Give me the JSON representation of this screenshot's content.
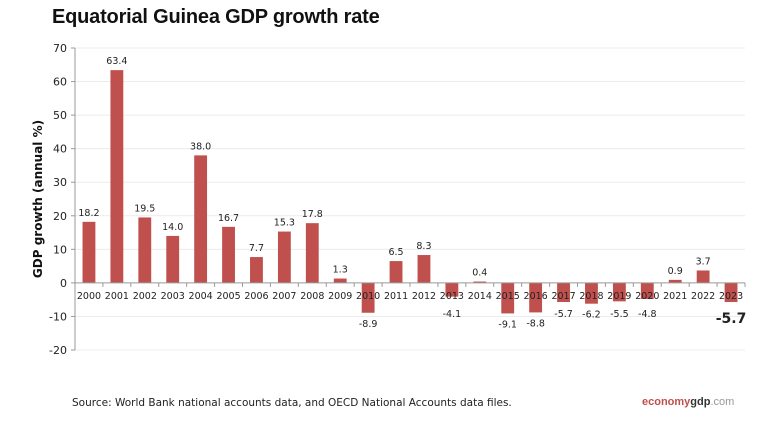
{
  "chart_data": {
    "type": "bar",
    "title": "Equatorial Guinea GDP growth rate",
    "ylabel": "GDP growth (annual %)",
    "xlabel": "",
    "ylim": [
      -20,
      70
    ],
    "yticks": [
      -20,
      -10,
      0,
      10,
      20,
      30,
      40,
      50,
      60,
      70
    ],
    "grid": true,
    "categories": [
      "2000",
      "2001",
      "2002",
      "2003",
      "2004",
      "2005",
      "2006",
      "2007",
      "2008",
      "2009",
      "2010",
      "2011",
      "2012",
      "2013",
      "2014",
      "2015",
      "2016",
      "2017",
      "2018",
      "2019",
      "2020",
      "2021",
      "2022",
      "2023"
    ],
    "values": [
      18.2,
      63.4,
      19.5,
      14.0,
      38.0,
      16.7,
      7.7,
      15.3,
      17.8,
      1.3,
      -8.9,
      6.5,
      8.3,
      -4.1,
      0.4,
      -9.1,
      -8.8,
      -5.7,
      -6.2,
      -5.5,
      -4.8,
      0.9,
      3.7,
      -5.7
    ],
    "labels": [
      "18.2",
      "63.4",
      "19.5",
      "14.0",
      "38.0",
      "16.7",
      "7.7",
      "15.3",
      "17.8",
      "1.3",
      "-8.9",
      "6.5",
      "8.3",
      "-4.1",
      "0.4",
      "-9.1",
      "-8.8",
      "-5.7",
      "-6.2",
      "-5.5",
      "-4.8",
      "0.9",
      "3.7",
      "-5.7"
    ],
    "bar_color": "#c0504d",
    "highlight_last": true
  },
  "source": "Source:  World Bank national accounts data, and OECD National Accounts data files.",
  "logo": {
    "part1": "economy",
    "part2": "gdp",
    "part3": ".com"
  }
}
